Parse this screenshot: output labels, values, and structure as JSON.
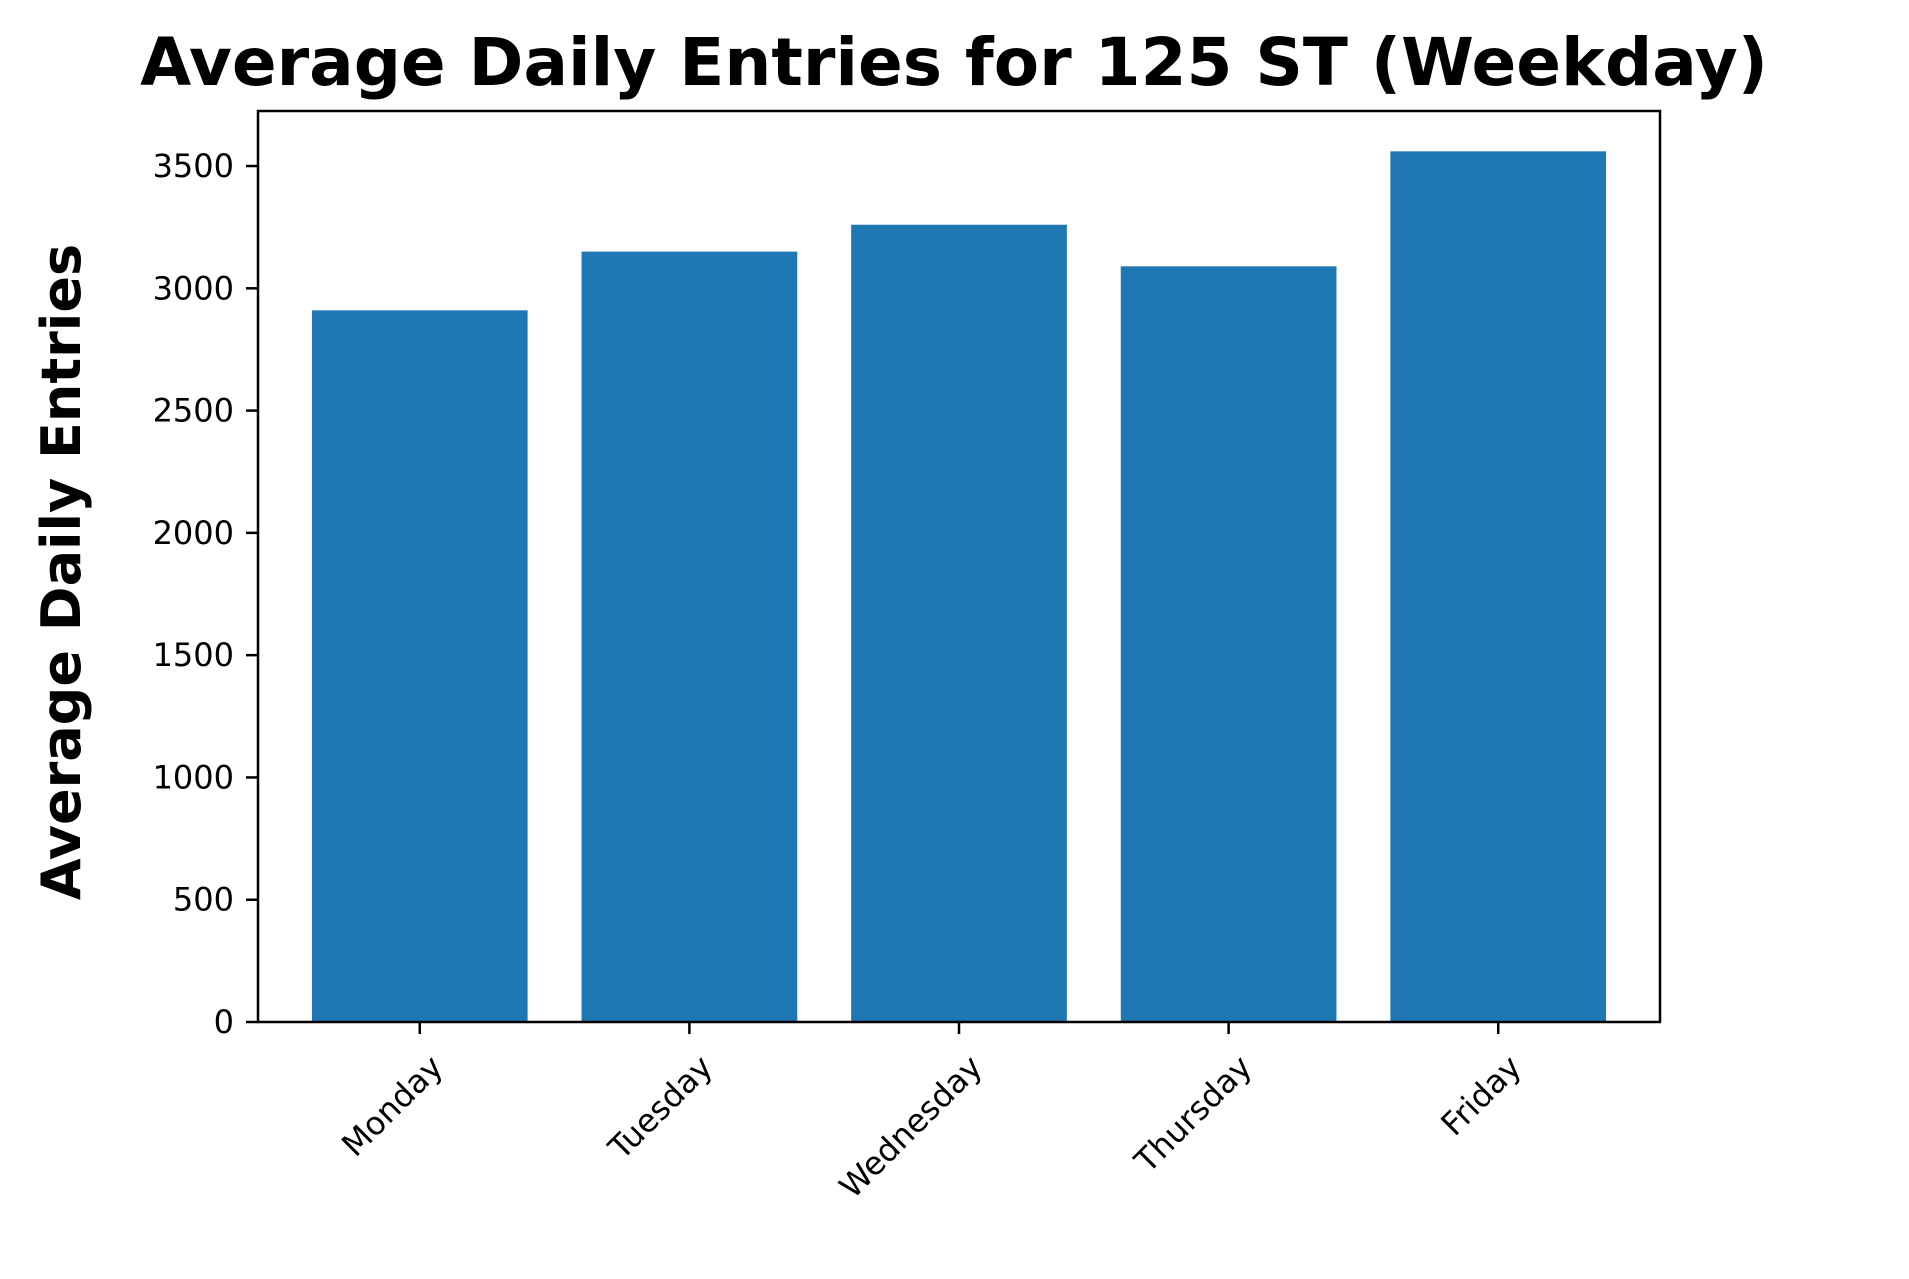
{
  "chart_data": {
    "type": "bar",
    "title": "Average Daily Entries for 125 ST (Weekday)",
    "xlabel": "",
    "ylabel": "Average Daily Entries",
    "categories": [
      "Monday",
      "Tuesday",
      "Wednesday",
      "Thursday",
      "Friday"
    ],
    "values": [
      2910,
      3150,
      3260,
      3090,
      3560
    ],
    "ylim": [
      0,
      3725
    ],
    "yticks": [
      0,
      500,
      1000,
      1500,
      2000,
      2500,
      3000,
      3500
    ],
    "bar_color": "#1f77b4",
    "grid": false,
    "legend": "none"
  }
}
